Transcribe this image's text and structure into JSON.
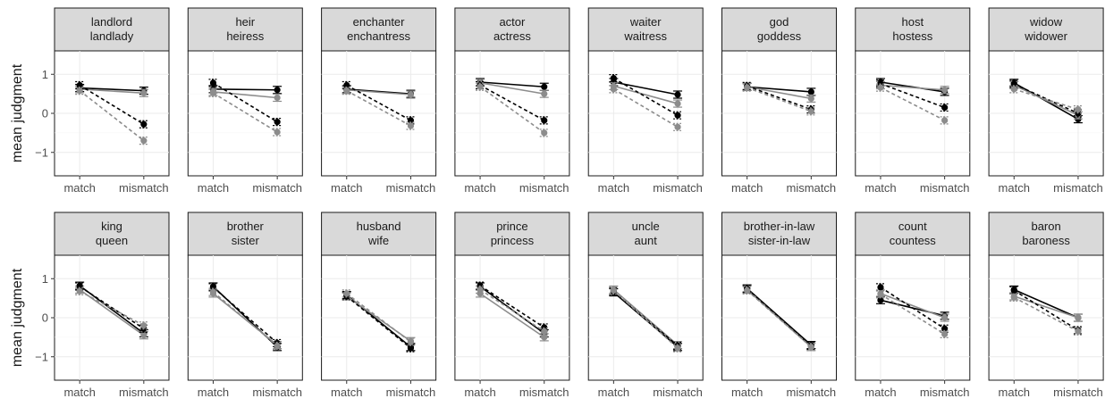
{
  "chart_data": {
    "type": "line",
    "ylabel": "mean judgment",
    "xlabel": "",
    "categories": [
      "match",
      "mismatch"
    ],
    "ylim": [
      -1.6,
      1.6
    ],
    "yticks": [
      -1,
      0,
      1
    ],
    "grid": true,
    "colors": {
      "solid_black": "#000000",
      "dashed_black": "#000000",
      "solid_gray": "#8c8c8c",
      "dashed_gray": "#8c8c8c"
    },
    "line_styles": [
      {
        "key": "solid_black",
        "dash": "none",
        "color": "#000000"
      },
      {
        "key": "solid_gray",
        "dash": "none",
        "color": "#8c8c8c"
      },
      {
        "key": "dashed_black",
        "dash": "4,3",
        "color": "#000000"
      },
      {
        "key": "dashed_gray",
        "dash": "4,3",
        "color": "#8c8c8c"
      }
    ],
    "panels": [
      {
        "title": [
          "landlord",
          "landlady"
        ],
        "series": {
          "solid_black": [
            0.65,
            0.58
          ],
          "solid_gray": [
            0.62,
            0.52
          ],
          "dashed_black": [
            0.72,
            -0.28
          ],
          "dashed_gray": [
            0.58,
            -0.7
          ]
        }
      },
      {
        "title": [
          "heir",
          "heiress"
        ],
        "series": {
          "solid_black": [
            0.62,
            0.6
          ],
          "solid_gray": [
            0.55,
            0.4
          ],
          "dashed_black": [
            0.78,
            -0.22
          ],
          "dashed_gray": [
            0.52,
            -0.48
          ]
        }
      },
      {
        "title": [
          "enchanter",
          "enchantress"
        ],
        "series": {
          "solid_black": [
            0.62,
            0.5
          ],
          "solid_gray": [
            0.6,
            0.48
          ],
          "dashed_black": [
            0.72,
            -0.18
          ],
          "dashed_gray": [
            0.58,
            -0.32
          ]
        }
      },
      {
        "title": [
          "actor",
          "actress"
        ],
        "series": {
          "solid_black": [
            0.8,
            0.68
          ],
          "solid_gray": [
            0.78,
            0.5
          ],
          "dashed_black": [
            0.72,
            -0.18
          ],
          "dashed_gray": [
            0.68,
            -0.5
          ]
        }
      },
      {
        "title": [
          "waiter",
          "waitress"
        ],
        "series": {
          "solid_black": [
            0.8,
            0.48
          ],
          "solid_gray": [
            0.7,
            0.25
          ],
          "dashed_black": [
            0.9,
            -0.05
          ],
          "dashed_gray": [
            0.62,
            -0.35
          ]
        }
      },
      {
        "title": [
          "god",
          "goddess"
        ],
        "series": {
          "solid_black": [
            0.68,
            0.55
          ],
          "solid_gray": [
            0.68,
            0.38
          ],
          "dashed_black": [
            0.7,
            0.1
          ],
          "dashed_gray": [
            0.66,
            0.05
          ]
        }
      },
      {
        "title": [
          "host",
          "hostess"
        ],
        "series": {
          "solid_black": [
            0.8,
            0.55
          ],
          "solid_gray": [
            0.72,
            0.6
          ],
          "dashed_black": [
            0.76,
            0.15
          ],
          "dashed_gray": [
            0.66,
            -0.18
          ]
        }
      },
      {
        "title": [
          "widow",
          "widower"
        ],
        "series": {
          "solid_black": [
            0.78,
            -0.15
          ],
          "solid_gray": [
            0.72,
            -0.05
          ],
          "dashed_black": [
            0.75,
            0.0
          ],
          "dashed_gray": [
            0.62,
            0.1
          ]
        }
      },
      {
        "title": [
          "king",
          "queen"
        ],
        "series": {
          "solid_black": [
            0.82,
            -0.4
          ],
          "solid_gray": [
            0.72,
            -0.45
          ],
          "dashed_black": [
            0.8,
            -0.28
          ],
          "dashed_gray": [
            0.68,
            -0.2
          ]
        }
      },
      {
        "title": [
          "brother",
          "sister"
        ],
        "series": {
          "solid_black": [
            0.8,
            -0.75
          ],
          "solid_gray": [
            0.62,
            -0.7
          ],
          "dashed_black": [
            0.78,
            -0.65
          ],
          "dashed_gray": [
            0.66,
            -0.72
          ]
        }
      },
      {
        "title": [
          "husband",
          "wife"
        ],
        "series": {
          "solid_black": [
            0.58,
            -0.75
          ],
          "solid_gray": [
            0.55,
            -0.6
          ],
          "dashed_black": [
            0.55,
            -0.78
          ],
          "dashed_gray": [
            0.62,
            -0.62
          ]
        }
      },
      {
        "title": [
          "prince",
          "princess"
        ],
        "series": {
          "solid_black": [
            0.8,
            -0.4
          ],
          "solid_gray": [
            0.62,
            -0.5
          ],
          "dashed_black": [
            0.82,
            -0.25
          ],
          "dashed_gray": [
            0.72,
            -0.35
          ]
        }
      },
      {
        "title": [
          "uncle",
          "aunt"
        ],
        "series": {
          "solid_black": [
            0.65,
            -0.75
          ],
          "solid_gray": [
            0.72,
            -0.7
          ],
          "dashed_black": [
            0.68,
            -0.72
          ],
          "dashed_gray": [
            0.7,
            -0.78
          ]
        }
      },
      {
        "title": [
          "brother-in-law",
          "sister-in-law"
        ],
        "series": {
          "solid_black": [
            0.75,
            -0.7
          ],
          "solid_gray": [
            0.72,
            -0.75
          ],
          "dashed_black": [
            0.74,
            -0.72
          ],
          "dashed_gray": [
            0.7,
            -0.75
          ]
        }
      },
      {
        "title": [
          "count",
          "countess"
        ],
        "series": {
          "solid_black": [
            0.45,
            0.05
          ],
          "solid_gray": [
            0.62,
            0.0
          ],
          "dashed_black": [
            0.78,
            -0.28
          ],
          "dashed_gray": [
            0.6,
            -0.42
          ]
        }
      },
      {
        "title": [
          "baron",
          "baroness"
        ],
        "series": {
          "solid_black": [
            0.72,
            0.0
          ],
          "solid_gray": [
            0.55,
            0.0
          ],
          "dashed_black": [
            0.7,
            -0.32
          ],
          "dashed_gray": [
            0.52,
            -0.35
          ]
        }
      }
    ]
  }
}
